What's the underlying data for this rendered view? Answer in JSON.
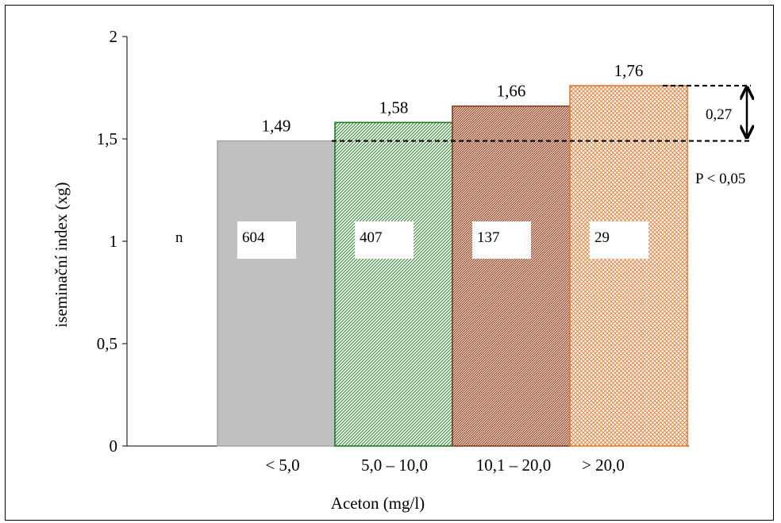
{
  "chart_data": {
    "type": "bar",
    "title": "",
    "xlabel": "Aceton (mg/l)",
    "ylabel": "iseminační index (xg)",
    "ylim": [
      0,
      2
    ],
    "yticks": [
      {
        "value": 0,
        "label": "0"
      },
      {
        "value": 0.5,
        "label": "0,5"
      },
      {
        "value": 1,
        "label": "1"
      },
      {
        "value": 1.5,
        "label": "1,5"
      },
      {
        "value": 2,
        "label": "2"
      }
    ],
    "categories": [
      "< 5,0",
      "5,0 – 10,0",
      "10,1 – 20,0",
      "> 20,0"
    ],
    "values": [
      1.49,
      1.58,
      1.66,
      1.76
    ],
    "value_labels": [
      "1,49",
      "1,58",
      "1,66",
      "1,76"
    ],
    "n_label": "n",
    "n_values": [
      "604",
      "407",
      "137",
      "29"
    ],
    "bar_styles": [
      {
        "fill": "#c0c0c0",
        "stroke": "#a6a6a6",
        "pattern": "solid"
      },
      {
        "fill": "#2e8b2e",
        "stroke": "#1e7a1e",
        "pattern": "diagonal"
      },
      {
        "fill": "#8b3a1a",
        "stroke": "#8b3a1a",
        "pattern": "diagonal"
      },
      {
        "fill": "#f07830",
        "stroke": "#f07830",
        "pattern": "crosshatch"
      }
    ],
    "difference_annotation": {
      "label": "0,27",
      "from": 1.49,
      "to": 1.76
    },
    "significance_label": "P < 0,05",
    "grid": false,
    "legend": "none"
  }
}
